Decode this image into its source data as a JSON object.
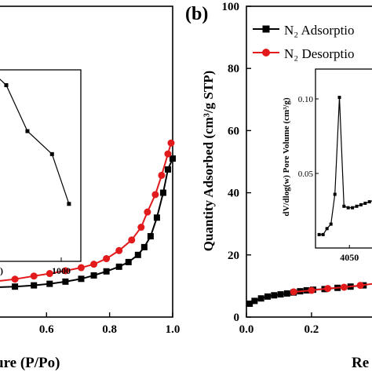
{
  "chart_data": [
    {
      "panel": "a",
      "type": "line",
      "xlabel": "ure (P/Po)",
      "ylabel": "",
      "xlim": [
        0.44,
        1.0
      ],
      "ylim": [
        0,
        100
      ],
      "xticks": [
        0.6,
        0.8,
        1.0
      ],
      "tick_labels": [
        "0.6",
        "0.8",
        "1.0"
      ],
      "series": [
        {
          "legend": "",
          "marker": "square",
          "color": "#000000",
          "points": [
            [
              0.44,
              9.6
            ],
            [
              0.5,
              9.8
            ],
            [
              0.56,
              10.2
            ],
            [
              0.61,
              10.7
            ],
            [
              0.66,
              11.4
            ],
            [
              0.71,
              12.3
            ],
            [
              0.75,
              13.4
            ],
            [
              0.79,
              14.7
            ],
            [
              0.83,
              16.2
            ],
            [
              0.86,
              17.7
            ],
            [
              0.89,
              20.0
            ],
            [
              0.91,
              22.5
            ],
            [
              0.93,
              26.0
            ],
            [
              0.95,
              32.0
            ],
            [
              0.97,
              40.0
            ],
            [
              0.985,
              47.5
            ],
            [
              1.0,
              51.0
            ]
          ]
        },
        {
          "legend": "",
          "marker": "circle",
          "color": "#e31a1c",
          "points": [
            [
              0.44,
              11.5
            ],
            [
              0.5,
              12.2
            ],
            [
              0.56,
              13.2
            ],
            [
              0.61,
              14.0
            ],
            [
              0.66,
              14.9
            ],
            [
              0.71,
              15.9
            ],
            [
              0.75,
              17.0
            ],
            [
              0.79,
              18.8
            ],
            [
              0.83,
              21.4
            ],
            [
              0.87,
              24.8
            ],
            [
              0.9,
              28.9
            ],
            [
              0.92,
              33.8
            ],
            [
              0.945,
              39.4
            ],
            [
              0.965,
              45.6
            ],
            [
              0.985,
              52.5
            ],
            [
              0.995,
              56.0
            ]
          ]
        }
      ],
      "inset": {
        "xtick_label": "1000",
        "partial_label": ".)",
        "points": [
          [
            0.0,
            0.97
          ],
          [
            0.12,
            0.92
          ],
          [
            0.37,
            0.68
          ],
          [
            0.66,
            0.56
          ],
          [
            0.86,
            0.3
          ]
        ]
      }
    },
    {
      "panel": "b",
      "panel_label": "(b)",
      "type": "line",
      "xlabel": "Re",
      "ylabel": "Quantity Adsorbed (cm³/g STP)",
      "xlim": [
        0,
        0.41
      ],
      "ylim": [
        0,
        100
      ],
      "xticks": [
        0.0,
        0.2
      ],
      "x_tick_labels": [
        "0.0",
        "0.2"
      ],
      "yticks": [
        0,
        20,
        40,
        60,
        80,
        100
      ],
      "y_tick_labels": [
        "0",
        "20",
        "40",
        "60",
        "80",
        "100"
      ],
      "legend_position": "top-right",
      "series": [
        {
          "name": "N₂ Adsorptio",
          "marker": "square",
          "color": "#000000",
          "points": [
            [
              0.01,
              4.3
            ],
            [
              0.025,
              5.2
            ],
            [
              0.045,
              6.0
            ],
            [
              0.065,
              6.6
            ],
            [
              0.085,
              7.0
            ],
            [
              0.105,
              7.3
            ],
            [
              0.125,
              7.6
            ],
            [
              0.145,
              7.9
            ],
            [
              0.165,
              8.3
            ],
            [
              0.185,
              8.6
            ],
            [
              0.205,
              8.8
            ],
            [
              0.24,
              9.0
            ],
            [
              0.28,
              9.4
            ],
            [
              0.32,
              9.8
            ],
            [
              0.36,
              10.2
            ]
          ]
        },
        {
          "name": "N₂ Desorptio",
          "marker": "circle",
          "color": "#e31a1c",
          "points": [
            [
              0.145,
              8.1
            ],
            [
              0.2,
              8.6
            ],
            [
              0.25,
              9.2
            ],
            [
              0.3,
              9.6
            ],
            [
              0.35,
              10.2
            ],
            [
              0.41,
              11.0
            ]
          ]
        }
      ],
      "inset": {
        "type": "line",
        "ylabel": "dV/dlog(w) Pore Volume (cm³/g)",
        "xlim": [
          3938,
          4140
        ],
        "ylim": [
          0,
          0.12
        ],
        "xticks": [
          4050
        ],
        "x_tick_labels": [
          "4050"
        ],
        "yticks": [
          0.05,
          0.1
        ],
        "y_tick_labels": [
          "0.05",
          "0.10"
        ],
        "points": [
          [
            3950,
            0.009
          ],
          [
            3963,
            0.009
          ],
          [
            3976,
            0.013
          ],
          [
            3989,
            0.016
          ],
          [
            4002,
            0.036
          ],
          [
            4017,
            0.101
          ],
          [
            4032,
            0.028
          ],
          [
            4046,
            0.027
          ],
          [
            4060,
            0.027
          ],
          [
            4074,
            0.028
          ],
          [
            4088,
            0.029
          ],
          [
            4102,
            0.03
          ],
          [
            4116,
            0.031
          ],
          [
            4130,
            0.032
          ]
        ]
      }
    }
  ]
}
